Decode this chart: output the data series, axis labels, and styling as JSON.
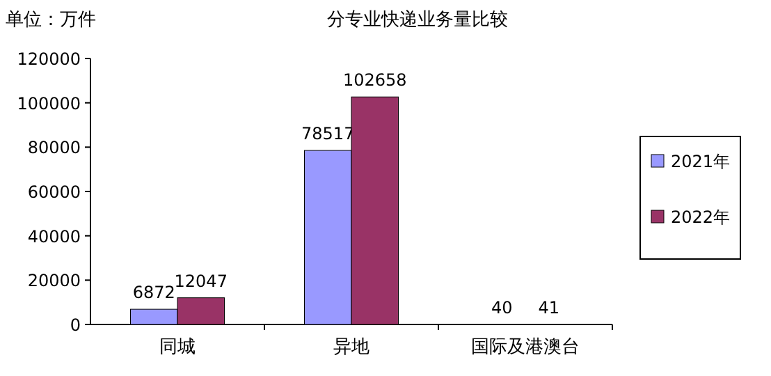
{
  "chart_data": {
    "type": "bar",
    "title": "分专业快递业务量比较",
    "annotations": [
      "单位：万件"
    ],
    "categories": [
      "同城",
      "异地",
      "国际及港澳台"
    ],
    "series": [
      {
        "name": "2021年",
        "color": "#9999ff",
        "values": [
          6872,
          78517,
          40
        ]
      },
      {
        "name": "2022年",
        "color": "#993366",
        "values": [
          12047,
          102658,
          41
        ]
      }
    ],
    "ylim": [
      0,
      120000
    ],
    "yticks": [
      0,
      20000,
      40000,
      60000,
      80000,
      100000,
      120000
    ],
    "data_labels": true,
    "legend": "right"
  }
}
